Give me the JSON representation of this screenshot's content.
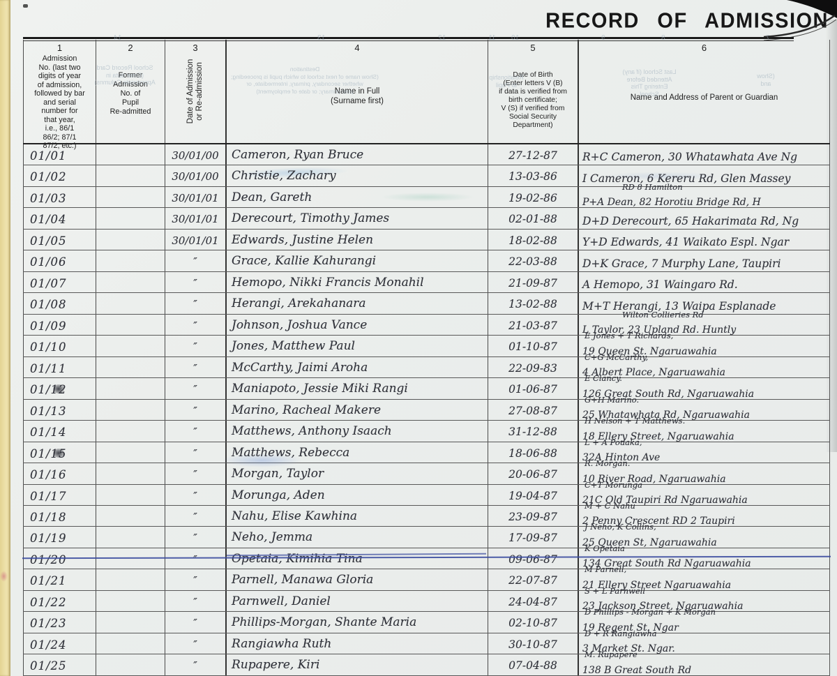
{
  "title": "RECORD OF ADMISSION",
  "columns": [
    {
      "num": "1",
      "header_lines": [
        "Admission",
        "No. (last two",
        "digits of year",
        "of admission,",
        "followed by bar",
        "and serial",
        "number for",
        "that year,",
        "i.e., 86/1",
        "86/2; 87/1",
        "87/2, etc.)"
      ]
    },
    {
      "num": "2",
      "header_lines": [
        "Former",
        "Admission",
        "No. of",
        "Pupil",
        "Re-admitted"
      ]
    },
    {
      "num": "3",
      "header_lines": [
        "Date of Admission",
        "or Re-admission"
      ],
      "vertical": true
    },
    {
      "num": "4",
      "header_lines": [
        "Name in Full",
        "(Surname first)"
      ]
    },
    {
      "num": "5",
      "header_lines": [
        "Date of Birth",
        "(Enter letters V (B)",
        "if data is verified from",
        "birth certificate;",
        "V (S) if verified from",
        "Social Security",
        "Department)"
      ]
    },
    {
      "num": "6",
      "header_lines": [
        "Name and Address of Parent or Guardian"
      ]
    }
  ],
  "rows": [
    {
      "admission_no": "01/01",
      "former_no": "",
      "date": "30/01/00",
      "name": "Cameron, Ryan  Bruce",
      "dob": "27-12-87",
      "parent_line1": "",
      "parent_line2": "R+C Cameron, 30 Whatawhata Ave Ng"
    },
    {
      "admission_no": "01/02",
      "former_no": "",
      "date": "30/01/00",
      "name": "Christie, Zachary",
      "dob": "13-03-86",
      "parent_line1": "",
      "parent_line2": "I Cameron, 6 Kereru Rd, Glen Massey"
    },
    {
      "admission_no": "01/03",
      "former_no": "",
      "date": "30/01/01",
      "name": "Dean, Gareth",
      "dob": "19-02-86",
      "parent_line1": "RD 8 Hamilton",
      "parent_line1_right": true,
      "parent_line2": "P+A Dean, 82 Horotiu Bridge Rd, H"
    },
    {
      "admission_no": "01/04",
      "former_no": "",
      "date": "30/01/01",
      "name": "Derecourt, Timothy James",
      "dob": "02-01-88",
      "parent_line1": "",
      "parent_line2": "D+D Derecourt, 65 Hakarimata Rd, Ng"
    },
    {
      "admission_no": "01/05",
      "former_no": "",
      "date": "30/01/01",
      "name": "Edwards, Justine Helen",
      "dob": "18-02-88",
      "parent_line1": "",
      "parent_line2": "Y+D Edwards, 41 Waikato Espl.  Ngar"
    },
    {
      "admission_no": "01/06",
      "former_no": "",
      "date": "″",
      "name": "Grace, Kallie Kahurangi",
      "dob": "22-03-88",
      "parent_line1": "",
      "parent_line2": "D+K Grace, 7 Murphy Lane, Taupiri"
    },
    {
      "admission_no": "01/07",
      "former_no": "",
      "date": "″",
      "name": "Hemopo, Nikki Francis Monahil",
      "dob": "21-09-87",
      "parent_line1": "",
      "parent_line2": "A Hemopo, 31 Waingaro Rd."
    },
    {
      "admission_no": "01/08",
      "former_no": "",
      "date": "″",
      "name": "Herangi, Arekahanara",
      "dob": "13-02-88",
      "parent_line1": "",
      "parent_line2": "M+T Herangi, 13 Waipa Esplanade"
    },
    {
      "admission_no": "01/09",
      "former_no": "",
      "date": "″",
      "name": "Johnson, Joshua Vance",
      "dob": "21-03-87",
      "parent_line1": "Wilton Collieries Rd",
      "parent_line1_right": true,
      "parent_line2": "L Taylor, 23 Upland Rd. Huntly"
    },
    {
      "admission_no": "01/10",
      "former_no": "",
      "date": "″",
      "name": "Jones, Matthew Paul",
      "dob": "01-10-87",
      "parent_line1": "E Jones + T Richards,",
      "parent_line2": "19 Queen St.  Ngaruawahia"
    },
    {
      "admission_no": "01/11",
      "former_no": "",
      "date": "″",
      "name": "McCarthy, Jaimi Aroha",
      "dob": "22-09-83",
      "parent_line1": "C+G McCarthy,",
      "parent_line2": "4 Albert Place,  Ngaruawahia"
    },
    {
      "admission_no": "01/12",
      "former_no": "",
      "date": "″",
      "name": "Maniapoto, Jessie Miki Rangi",
      "dob": "01-06-87",
      "parent_line1": "E Clancy.",
      "parent_line2": "126 Great South Rd,  Ngaruawahia",
      "admission_no_overwritten": true
    },
    {
      "admission_no": "01/13",
      "former_no": "",
      "date": "″",
      "name": "Marino, Racheal Makere",
      "dob": "27-08-87",
      "parent_line1": "G+H Marino.",
      "parent_line2": "25 Whatawhata Rd,  Ngaruawahia"
    },
    {
      "admission_no": "01/14",
      "former_no": "",
      "date": "″",
      "name": "Matthews, Anthony Isaach",
      "dob": "31-12-88",
      "parent_line1": "H Nelson + T Matthews.",
      "parent_line2": "18 Ellery Street,  Ngaruawahia"
    },
    {
      "admission_no": "01/15",
      "former_no": "",
      "date": "″",
      "name": "Matthews, Rebecca",
      "dob": "18-06-88",
      "parent_line1": "L + A Pouaka,",
      "parent_line2": "32A  Hinton  Ave",
      "admission_no_overwritten": true
    },
    {
      "admission_no": "01/16",
      "former_no": "",
      "date": "″",
      "name": "Morgan, Taylor",
      "dob": "20-06-87",
      "parent_line1": "R. Morgan.",
      "parent_line2": "10 River Road,  Ngaruawahia"
    },
    {
      "admission_no": "01/17",
      "former_no": "",
      "date": "″",
      "name": "Morunga,  Aden",
      "dob": "19-04-87",
      "parent_line1": "C+T Morunga",
      "parent_line2": "21C Old Taupiri Rd  Ngaruawahia"
    },
    {
      "admission_no": "01/18",
      "former_no": "",
      "date": "″",
      "name": "Nahu, Elise Kawhina",
      "dob": "23-09-87",
      "parent_line1": "M + C Nahu",
      "parent_line2": "2 Penny Crescent  RD 2  Taupiri"
    },
    {
      "admission_no": "01/19",
      "former_no": "",
      "date": "″",
      "name": "Neho, Jemma",
      "dob": "17-09-87",
      "parent_line1": "J Neho,  K Collins,",
      "parent_line2": "25 Queen St,  Ngaruawahia"
    },
    {
      "admission_no": "01/20",
      "former_no": "",
      "date": "″",
      "name": "Opetaia, Kimihia  Tina",
      "dob": "09-06-87",
      "parent_line1": "K Opetaia",
      "parent_line2": "134 Great South Rd  Ngaruawahia",
      "struck": true
    },
    {
      "admission_no": "01/21",
      "former_no": "",
      "date": "″",
      "name": "Parnell, Manawa Gloria",
      "dob": "22-07-87",
      "parent_line1": "M Parnell,",
      "parent_line2": "21 Ellery Street  Ngaruawahia"
    },
    {
      "admission_no": "01/22",
      "former_no": "",
      "date": "″",
      "name": "Parnwell, Daniel",
      "dob": "24-04-87",
      "parent_line1": "S + L Parnwell",
      "parent_line2": "23 Jackson Street,  Ngaruawahia"
    },
    {
      "admission_no": "01/23",
      "former_no": "",
      "date": "″",
      "name": "Phillips-Morgan, Shante Maria",
      "dob": "02-10-87",
      "parent_line1": "D Phillips - Morgan  +  K Morgan",
      "parent_line2": "19  Regent St.  Ngar"
    },
    {
      "admission_no": "01/24",
      "former_no": "",
      "date": "″",
      "name": "Rangiawha  Ruth",
      "dob": "30-10-87",
      "parent_line1": "D + R  Rangiawha",
      "parent_line2": "3  Market St.   Ngar."
    },
    {
      "admission_no": "01/25",
      "former_no": "",
      "date": "″",
      "name": "Rupapere,   Kiri",
      "dob": "07-04-88",
      "parent_line1": "M.  Rupapere",
      "parent_line2": "138 B   Great South Rd"
    }
  ],
  "ghost_bleed": {
    "numbers": [
      "14",
      "13",
      "12",
      "11",
      "10",
      "9",
      "8",
      "7"
    ],
    "blocks": [
      {
        "id": "school-record",
        "lines": [
          "School Record Card",
          "(Enter data in",
          "Appropriate Columns)"
        ]
      },
      {
        "id": "destination",
        "lines": [
          "Destination",
          "(Show name of next school to which pupil is proceeding;",
          "whether secondary, primary, intermediate, or",
          "post-primary; or date of employment)"
        ]
      },
      {
        "id": "relationship",
        "lines": [
          "Relationship",
          "to Pupil"
        ]
      },
      {
        "id": "last-school",
        "lines": [
          "Last School (if any)",
          "Attended Before",
          "Entering This",
          "School"
        ]
      },
      {
        "id": "show",
        "lines": [
          "(Show",
          "and"
        ]
      }
    ]
  },
  "colors": {
    "ink": "#30323a",
    "strike_blue": "#3c4da0",
    "page_edge_yellow": "#efe3ae",
    "paper": "#ebeeec",
    "rule_dark": "#222222"
  }
}
